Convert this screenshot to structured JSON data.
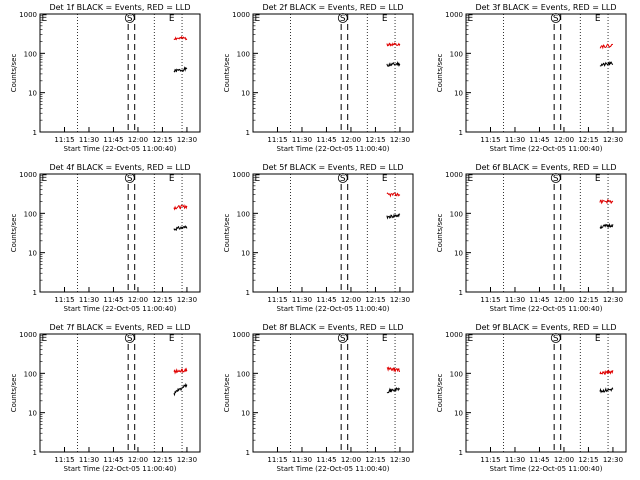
{
  "colors": {
    "events": "#000000",
    "lld": "#e00000",
    "axis": "#000000"
  },
  "chart_data": [
    {
      "type": "line",
      "title": "Det 1f BLACK = Events, RED = LLD",
      "xlabel": "Start Time (22-Oct-05 11:00:40)",
      "ylabel": "Counts/sec",
      "yscale": "log",
      "ylim": [
        1,
        1000
      ],
      "x_ticks": [
        "11:15",
        "11:30",
        "11:45",
        "12:00",
        "12:15",
        "12:30"
      ],
      "y_ticks": [
        "1",
        "10",
        "100",
        "1000"
      ],
      "markers": [
        {
          "label": "E",
          "time": "11:00"
        },
        {
          "label": "S",
          "time": "11:55"
        },
        {
          "label": "E",
          "time": "12:18"
        }
      ],
      "dotted_lines": [
        "11:00",
        "11:23",
        "12:10",
        "12:27"
      ],
      "dashed_lines": [
        "11:54",
        "11:58"
      ],
      "series": [
        {
          "name": "Events",
          "x": [
            "12:22",
            "12:30"
          ],
          "values": [
            35,
            40
          ]
        },
        {
          "name": "LLD",
          "x": [
            "12:22",
            "12:30"
          ],
          "values": [
            240,
            240
          ]
        }
      ]
    },
    {
      "type": "line",
      "title": "Det 2f BLACK = Events, RED = LLD",
      "xlabel": "Start Time (22-Oct-05 11:00:40)",
      "ylabel": "Counts/sec",
      "yscale": "log",
      "ylim": [
        1,
        1000
      ],
      "x_ticks": [
        "11:15",
        "11:30",
        "11:45",
        "12:00",
        "12:15",
        "12:30"
      ],
      "y_ticks": [
        "1",
        "10",
        "100",
        "1000"
      ],
      "markers": [
        {
          "label": "E",
          "time": "11:00"
        },
        {
          "label": "S",
          "time": "11:55"
        },
        {
          "label": "E",
          "time": "12:18"
        }
      ],
      "dotted_lines": [
        "11:00",
        "11:23",
        "12:10",
        "12:27"
      ],
      "dashed_lines": [
        "11:54",
        "11:58"
      ],
      "series": [
        {
          "name": "Events",
          "x": [
            "12:22",
            "12:30"
          ],
          "values": [
            50,
            55
          ]
        },
        {
          "name": "LLD",
          "x": [
            "12:22",
            "12:30"
          ],
          "values": [
            170,
            160
          ]
        }
      ]
    },
    {
      "type": "line",
      "title": "Det 3f BLACK = Events, RED = LLD",
      "xlabel": "Start Time (22-Oct-05 11:00:40)",
      "ylabel": "Counts/sec",
      "yscale": "log",
      "ylim": [
        1,
        1000
      ],
      "x_ticks": [
        "11:15",
        "11:30",
        "11:45",
        "12:00",
        "12:15",
        "12:30"
      ],
      "y_ticks": [
        "1",
        "10",
        "100",
        "1000"
      ],
      "markers": [
        {
          "label": "E",
          "time": "11:00"
        },
        {
          "label": "S",
          "time": "11:55"
        },
        {
          "label": "E",
          "time": "12:18"
        }
      ],
      "dotted_lines": [
        "11:00",
        "11:23",
        "12:10",
        "12:27"
      ],
      "dashed_lines": [
        "11:54",
        "11:58"
      ],
      "series": [
        {
          "name": "Events",
          "x": [
            "12:22",
            "12:30"
          ],
          "values": [
            50,
            55
          ]
        },
        {
          "name": "LLD",
          "x": [
            "12:22",
            "12:30"
          ],
          "values": [
            150,
            160
          ]
        }
      ]
    },
    {
      "type": "line",
      "title": "Det 4f BLACK = Events, RED = LLD",
      "xlabel": "Start Time (22-Oct-05 11:00:40)",
      "ylabel": "Counts/sec",
      "yscale": "log",
      "ylim": [
        1,
        1000
      ],
      "x_ticks": [
        "11:15",
        "11:30",
        "11:45",
        "12:00",
        "12:15",
        "12:30"
      ],
      "y_ticks": [
        "1",
        "10",
        "100",
        "1000"
      ],
      "markers": [
        {
          "label": "E",
          "time": "11:00"
        },
        {
          "label": "S",
          "time": "11:55"
        },
        {
          "label": "E",
          "time": "12:18"
        }
      ],
      "dotted_lines": [
        "11:00",
        "11:23",
        "12:10",
        "12:27"
      ],
      "dashed_lines": [
        "11:54",
        "11:58"
      ],
      "series": [
        {
          "name": "Events",
          "x": [
            "12:22",
            "12:30"
          ],
          "values": [
            40,
            45
          ]
        },
        {
          "name": "LLD",
          "x": [
            "12:22",
            "12:30"
          ],
          "values": [
            140,
            150
          ]
        }
      ]
    },
    {
      "type": "line",
      "title": "Det 5f BLACK = Events, RED = LLD",
      "xlabel": "Start Time (22-Oct-05 11:00:40)",
      "ylabel": "Counts/sec",
      "yscale": "log",
      "ylim": [
        1,
        1000
      ],
      "x_ticks": [
        "11:15",
        "11:30",
        "11:45",
        "12:00",
        "12:15",
        "12:30"
      ],
      "y_ticks": [
        "1",
        "10",
        "100",
        "1000"
      ],
      "markers": [
        {
          "label": "E",
          "time": "11:00"
        },
        {
          "label": "S",
          "time": "11:55"
        },
        {
          "label": "E",
          "time": "12:18"
        }
      ],
      "dotted_lines": [
        "11:00",
        "11:23",
        "12:10",
        "12:27"
      ],
      "dashed_lines": [
        "11:54",
        "11:58"
      ],
      "series": [
        {
          "name": "Events",
          "x": [
            "12:22",
            "12:30"
          ],
          "values": [
            80,
            90
          ]
        },
        {
          "name": "LLD",
          "x": [
            "12:22",
            "12:30"
          ],
          "values": [
            300,
            300
          ]
        }
      ]
    },
    {
      "type": "line",
      "title": "Det 6f BLACK = Events, RED = LLD",
      "xlabel": "Start Time (22-Oct-05 11:00:40)",
      "ylabel": "Counts/sec",
      "yscale": "log",
      "ylim": [
        1,
        1000
      ],
      "x_ticks": [
        "11:15",
        "11:30",
        "11:45",
        "12:00",
        "12:15",
        "12:30"
      ],
      "y_ticks": [
        "1",
        "10",
        "100",
        "1000"
      ],
      "markers": [
        {
          "label": "E",
          "time": "11:00"
        },
        {
          "label": "S",
          "time": "11:55"
        },
        {
          "label": "E",
          "time": "12:18"
        }
      ],
      "dotted_lines": [
        "11:00",
        "11:23",
        "12:10",
        "12:27"
      ],
      "dashed_lines": [
        "11:54",
        "11:58"
      ],
      "series": [
        {
          "name": "Events",
          "x": [
            "12:22",
            "12:30"
          ],
          "values": [
            45,
            50
          ]
        },
        {
          "name": "LLD",
          "x": [
            "12:22",
            "12:30"
          ],
          "values": [
            200,
            200
          ]
        }
      ]
    },
    {
      "type": "line",
      "title": "Det 7f BLACK = Events, RED = LLD",
      "xlabel": "Start Time (22-Oct-05 11:00:40)",
      "ylabel": "Counts/sec",
      "yscale": "log",
      "ylim": [
        1,
        1000
      ],
      "x_ticks": [
        "11:15",
        "11:30",
        "11:45",
        "12:00",
        "12:15",
        "12:30"
      ],
      "y_ticks": [
        "1",
        "10",
        "100",
        "1000"
      ],
      "markers": [
        {
          "label": "E",
          "time": "11:00"
        },
        {
          "label": "S",
          "time": "11:55"
        },
        {
          "label": "E",
          "time": "12:18"
        }
      ],
      "dotted_lines": [
        "11:00",
        "11:23",
        "12:10",
        "12:27"
      ],
      "dashed_lines": [
        "11:54",
        "11:58"
      ],
      "series": [
        {
          "name": "Events",
          "x": [
            "12:22",
            "12:30"
          ],
          "values": [
            30,
            50
          ]
        },
        {
          "name": "LLD",
          "x": [
            "12:22",
            "12:30"
          ],
          "values": [
            110,
            120
          ]
        }
      ]
    },
    {
      "type": "line",
      "title": "Det 8f BLACK = Events, RED = LLD",
      "xlabel": "Start Time (22-Oct-05 11:00:40)",
      "ylabel": "Counts/sec",
      "yscale": "log",
      "ylim": [
        1,
        1000
      ],
      "x_ticks": [
        "11:15",
        "11:30",
        "11:45",
        "12:00",
        "12:15",
        "12:30"
      ],
      "y_ticks": [
        "1",
        "10",
        "100",
        "1000"
      ],
      "markers": [
        {
          "label": "E",
          "time": "11:00"
        },
        {
          "label": "S",
          "time": "11:55"
        },
        {
          "label": "E",
          "time": "12:18"
        }
      ],
      "dotted_lines": [
        "11:00",
        "11:23",
        "12:10",
        "12:27"
      ],
      "dashed_lines": [
        "11:54",
        "11:58"
      ],
      "series": [
        {
          "name": "Events",
          "x": [
            "12:22",
            "12:30"
          ],
          "values": [
            35,
            40
          ]
        },
        {
          "name": "LLD",
          "x": [
            "12:22",
            "12:30"
          ],
          "values": [
            130,
            120
          ]
        }
      ]
    },
    {
      "type": "line",
      "title": "Det 9f BLACK = Events, RED = LLD",
      "xlabel": "Start Time (22-Oct-05 11:00:40)",
      "ylabel": "Counts/sec",
      "yscale": "log",
      "ylim": [
        1,
        1000
      ],
      "x_ticks": [
        "11:15",
        "11:30",
        "11:45",
        "12:00",
        "12:15",
        "12:30"
      ],
      "y_ticks": [
        "1",
        "10",
        "100",
        "1000"
      ],
      "markers": [
        {
          "label": "E",
          "time": "11:00"
        },
        {
          "label": "S",
          "time": "11:55"
        },
        {
          "label": "E",
          "time": "12:18"
        }
      ],
      "dotted_lines": [
        "11:00",
        "11:23",
        "12:10",
        "12:27"
      ],
      "dashed_lines": [
        "11:54",
        "11:58"
      ],
      "series": [
        {
          "name": "Events",
          "x": [
            "12:22",
            "12:30"
          ],
          "values": [
            35,
            40
          ]
        },
        {
          "name": "LLD",
          "x": [
            "12:22",
            "12:30"
          ],
          "values": [
            100,
            110
          ]
        }
      ]
    }
  ]
}
